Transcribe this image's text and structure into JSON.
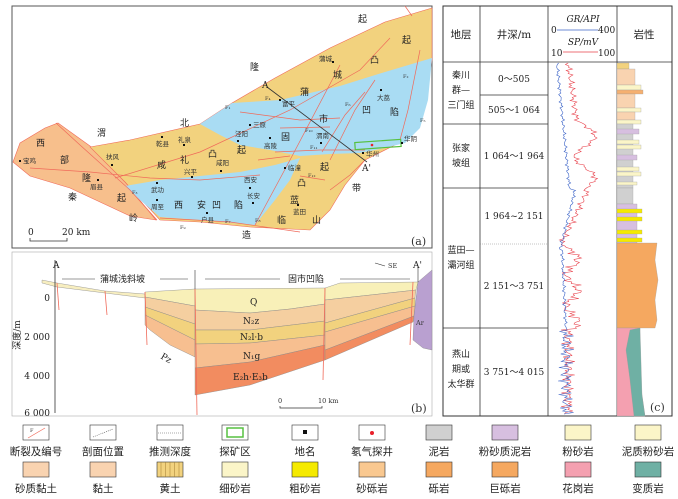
{
  "colors": {
    "uplift": "#f2d27e",
    "west_uplift": "#f7bf8c",
    "depression": "#a9dcf3",
    "fault": "#f06a5a",
    "mine": "#57c040",
    "radon": "#e8202a",
    "frame": "#333333"
  },
  "map": {
    "panel_label": "(a)",
    "scale_zero": "0",
    "scale_km": "20 km",
    "section_start": "A",
    "section_end": "A'",
    "region_chars": [
      "起",
      "起",
      "凸",
      "城",
      "蒲",
      "隆",
      "北",
      "渭",
      "西",
      "部",
      "隆",
      "起",
      "秦",
      "岭",
      "造",
      "临",
      "山",
      "蓝",
      "凸",
      "起",
      "带",
      "市",
      "凹",
      "陷",
      "固",
      "咸",
      "礼",
      "凸",
      "起",
      "西",
      "安",
      "凹",
      "陷"
    ],
    "cities": [
      "蒲城",
      "富平",
      "大荔",
      "三原",
      "泾阳",
      "高陵",
      "渭南",
      "华阴",
      "华州",
      "乾县",
      "礼泉",
      "扶风",
      "宝鸡",
      "眉县",
      "兴平",
      "咸阳",
      "武功",
      "周至",
      "户县",
      "西安",
      "长安",
      "临潼",
      "蓝田"
    ],
    "faults": [
      "F₁",
      "F₂",
      "F₃",
      "F₄",
      "F₅",
      "F₆",
      "F₇",
      "F₈",
      "F₉",
      "F₁₀",
      "F₁₁",
      "F₁₂"
    ]
  },
  "section": {
    "panel_label": "(b)",
    "start": "A",
    "end": "A'",
    "zone_left": "蒲城浅斜坡",
    "zone_right": "固市凹陷",
    "direction": "SE",
    "y_axis_label": "深度/m",
    "depth_ticks": [
      "0",
      "2 000",
      "4 000",
      "6 000"
    ],
    "layers": [
      "Q",
      "N₂z",
      "N₂l·b",
      "N₁g",
      "E₂h·E₃b"
    ],
    "basement_left": "Pz",
    "basement_right": "Ar",
    "scale_zero": "0",
    "scale_km": "10 km"
  },
  "well": {
    "panel_label": "(c)",
    "headers": {
      "strata": "地层",
      "depth": "井深/m",
      "gr": "GR/API",
      "gr_min": "0",
      "gr_max": "400",
      "sp": "SP/mV",
      "sp_min": "10",
      "sp_max": "100",
      "lithology": "岩性"
    },
    "strata": [
      {
        "lines": [
          "秦川",
          "群—",
          "三门组"
        ]
      },
      {
        "lines": [
          "张家",
          "坡组"
        ]
      },
      {
        "lines": [
          "蓝田—",
          "灞河组"
        ]
      },
      {
        "lines": [
          "燕山",
          "期或",
          "太华群"
        ]
      }
    ],
    "depths": [
      "0～505",
      "505～1 064",
      "1 064～1 964",
      "1 964~2 151",
      "2 151～3 751",
      "3 751～4 015"
    ]
  },
  "legend": [
    "断裂及编号",
    "剖面位置",
    "推测深度",
    "探矿区",
    "地名",
    "氡气探井",
    "泥岩",
    "粉砂质泥岩",
    "粉砂岩",
    "泥质粉砂岩",
    "砂质黏土",
    "黏土",
    "黄土",
    "细砂岩",
    "粗砂岩",
    "砂砾岩",
    "砾岩",
    "巨砾岩",
    "花岗岩",
    "变质岩"
  ],
  "legend_fault_sample": "F"
}
